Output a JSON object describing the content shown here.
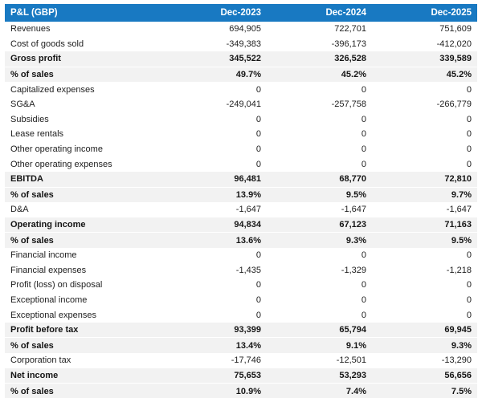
{
  "chart_data": {
    "type": "table",
    "title": "P&L (GBP)",
    "currency": "GBP",
    "columns": [
      "Dec-2023",
      "Dec-2024",
      "Dec-2025"
    ],
    "rows": [
      {
        "label": "Revenues",
        "values": [
          "694,905",
          "722,701",
          "751,609"
        ],
        "emphasis": false
      },
      {
        "label": "Cost of goods sold",
        "values": [
          "-349,383",
          "-396,173",
          "-412,020"
        ],
        "emphasis": false
      },
      {
        "label": "Gross profit",
        "values": [
          "345,522",
          "326,528",
          "339,589"
        ],
        "emphasis": true
      },
      {
        "label": "% of sales",
        "values": [
          "49.7%",
          "45.2%",
          "45.2%"
        ],
        "emphasis": true
      },
      {
        "label": "Capitalized expenses",
        "values": [
          "0",
          "0",
          "0"
        ],
        "emphasis": false
      },
      {
        "label": "SG&A",
        "values": [
          "-249,041",
          "-257,758",
          "-266,779"
        ],
        "emphasis": false
      },
      {
        "label": "Subsidies",
        "values": [
          "0",
          "0",
          "0"
        ],
        "emphasis": false
      },
      {
        "label": "Lease rentals",
        "values": [
          "0",
          "0",
          "0"
        ],
        "emphasis": false
      },
      {
        "label": "Other operating income",
        "values": [
          "0",
          "0",
          "0"
        ],
        "emphasis": false
      },
      {
        "label": "Other operating expenses",
        "values": [
          "0",
          "0",
          "0"
        ],
        "emphasis": false
      },
      {
        "label": "EBITDA",
        "values": [
          "96,481",
          "68,770",
          "72,810"
        ],
        "emphasis": true
      },
      {
        "label": "% of sales",
        "values": [
          "13.9%",
          "9.5%",
          "9.7%"
        ],
        "emphasis": true
      },
      {
        "label": "D&A",
        "values": [
          "-1,647",
          "-1,647",
          "-1,647"
        ],
        "emphasis": false
      },
      {
        "label": "Operating income",
        "values": [
          "94,834",
          "67,123",
          "71,163"
        ],
        "emphasis": true
      },
      {
        "label": "% of sales",
        "values": [
          "13.6%",
          "9.3%",
          "9.5%"
        ],
        "emphasis": true
      },
      {
        "label": "Financial income",
        "values": [
          "0",
          "0",
          "0"
        ],
        "emphasis": false
      },
      {
        "label": "Financial expenses",
        "values": [
          "-1,435",
          "-1,329",
          "-1,218"
        ],
        "emphasis": false
      },
      {
        "label": "Profit (loss) on disposal",
        "values": [
          "0",
          "0",
          "0"
        ],
        "emphasis": false
      },
      {
        "label": "Exceptional income",
        "values": [
          "0",
          "0",
          "0"
        ],
        "emphasis": false
      },
      {
        "label": "Exceptional expenses",
        "values": [
          "0",
          "0",
          "0"
        ],
        "emphasis": false
      },
      {
        "label": "Profit before tax",
        "values": [
          "93,399",
          "65,794",
          "69,945"
        ],
        "emphasis": true
      },
      {
        "label": "% of sales",
        "values": [
          "13.4%",
          "9.1%",
          "9.3%"
        ],
        "emphasis": true
      },
      {
        "label": "Corporation tax",
        "values": [
          "-17,746",
          "-12,501",
          "-13,290"
        ],
        "emphasis": false
      },
      {
        "label": "Net income",
        "values": [
          "75,653",
          "53,293",
          "56,656"
        ],
        "emphasis": true
      },
      {
        "label": "% of sales",
        "values": [
          "10.9%",
          "7.4%",
          "7.5%"
        ],
        "emphasis": true
      }
    ],
    "layout": {
      "header_bg": "#1879c2",
      "header_text_color": "#ffffff",
      "emphasis_row_bg": "#f2f2f2",
      "body_text_color": "#1e1e1e"
    }
  }
}
